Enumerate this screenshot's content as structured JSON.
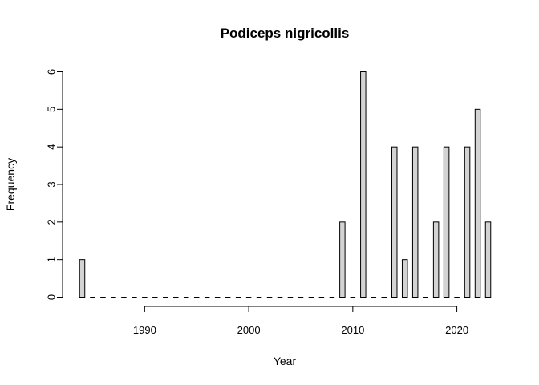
{
  "chart_data": {
    "type": "bar",
    "title": "Podiceps nigricollis",
    "xlabel": "Year",
    "ylabel": "Frequency",
    "x_start": 1984,
    "x_end": 2023,
    "xlim": [
      1983.5,
      2023.5
    ],
    "ylim": [
      0,
      6
    ],
    "x_ticks": [
      1990,
      2000,
      2010,
      2020
    ],
    "y_ticks": [
      0,
      1,
      2,
      3,
      4,
      5,
      6
    ],
    "bars": [
      {
        "year": 1984,
        "value": 1
      },
      {
        "year": 2009,
        "value": 2
      },
      {
        "year": 2011,
        "value": 6
      },
      {
        "year": 2014,
        "value": 4
      },
      {
        "year": 2015,
        "value": 1
      },
      {
        "year": 2016,
        "value": 4
      },
      {
        "year": 2018,
        "value": 2
      },
      {
        "year": 2019,
        "value": 4
      },
      {
        "year": 2021,
        "value": 4
      },
      {
        "year": 2022,
        "value": 5
      },
      {
        "year": 2023,
        "value": 2
      }
    ],
    "grid": false,
    "legend": "none"
  }
}
